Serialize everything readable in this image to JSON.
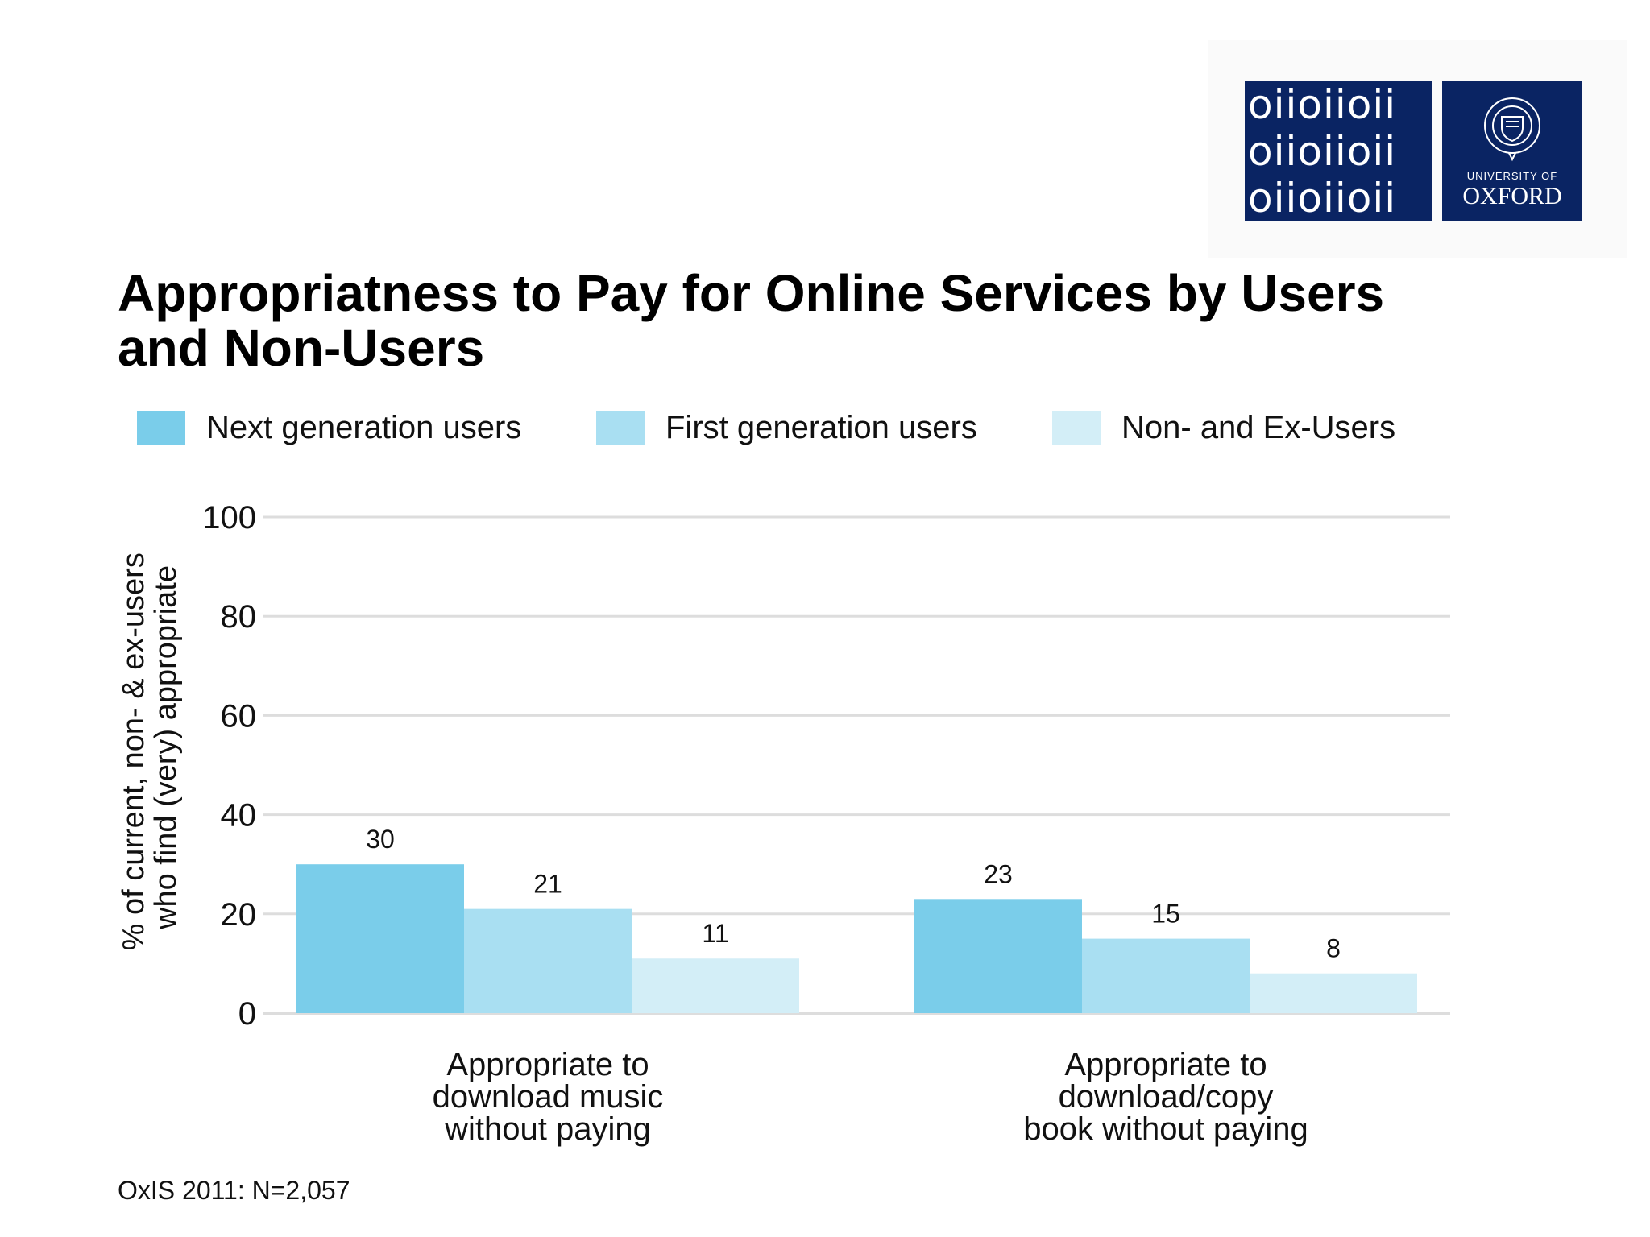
{
  "logo": {
    "oii_rows": [
      "oiioiioii",
      "oiioiioii",
      "oiioiioii"
    ],
    "university_of": "UNIVERSITY OF",
    "oxford": "OXFORD",
    "navy": "#0a2463"
  },
  "title": "Appropriatness to Pay for Online Services by Users and Non-Users",
  "source_note": "OxIS 2011: N=2,057",
  "colors": {
    "next_gen": "#7acdea",
    "first_gen": "#a9dff2",
    "non_ex": "#d3eef7",
    "grid": "#dddddd",
    "text": "#111111"
  },
  "chart_data": {
    "type": "bar",
    "title": "Appropriatness to Pay for Online Services by Users and Non-Users",
    "ylabel": [
      "% of current, non- & ex-users",
      "who find (very) appropriate"
    ],
    "xlabel": "",
    "ylim": [
      0,
      100
    ],
    "yticks": [
      0,
      20,
      40,
      60,
      80,
      100
    ],
    "grid": true,
    "legend_position": "top",
    "categories": [
      [
        "Appropriate to",
        "download music",
        "without paying"
      ],
      [
        "Appropriate to",
        "download/copy",
        "book without paying"
      ]
    ],
    "series": [
      {
        "name": "Next generation users",
        "values": [
          30,
          23
        ],
        "color": "#7acdea"
      },
      {
        "name": "First generation users",
        "values": [
          21,
          15
        ],
        "color": "#a9dff2"
      },
      {
        "name": "Non- and Ex-Users",
        "values": [
          11,
          8
        ],
        "color": "#d3eef7"
      }
    ]
  }
}
